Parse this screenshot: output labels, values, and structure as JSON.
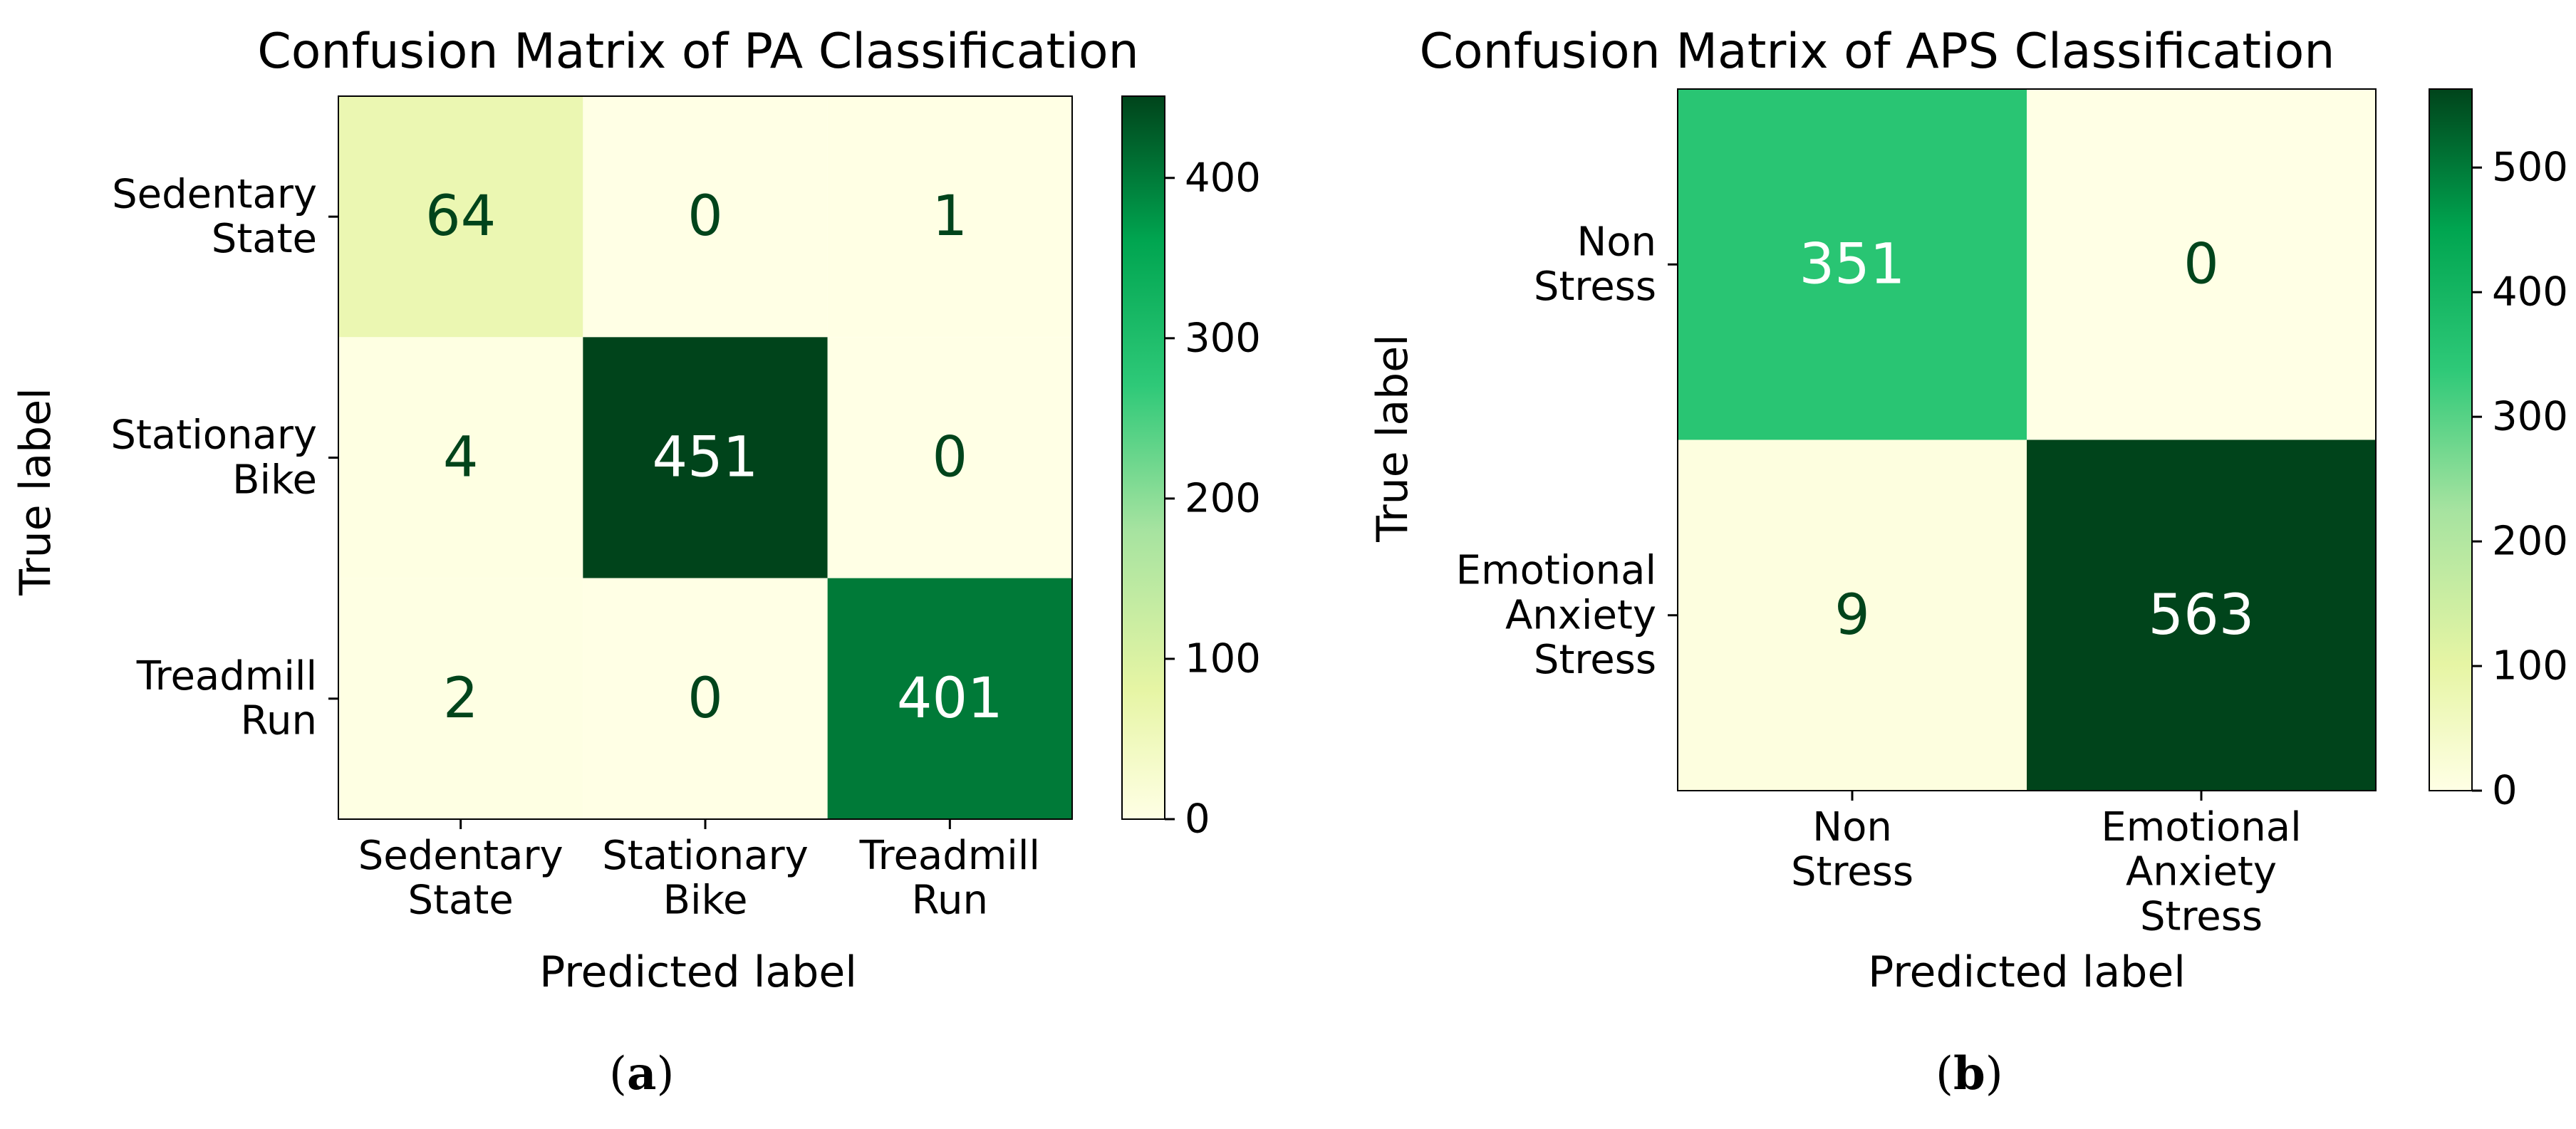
{
  "chart_data": [
    {
      "type": "heatmap",
      "title": "Confusion Matrix of PA Classification",
      "xlabel": "Predicted label",
      "ylabel": "True label",
      "row_labels": [
        [
          "Sedentary",
          "State"
        ],
        [
          "Stationary",
          "Bike"
        ],
        [
          "Treadmill",
          "Run"
        ]
      ],
      "col_labels": [
        [
          "Sedentary",
          "State"
        ],
        [
          "Stationary",
          "Bike"
        ],
        [
          "Treadmill",
          "Run"
        ]
      ],
      "values": [
        [
          64,
          0,
          1
        ],
        [
          4,
          451,
          0
        ],
        [
          2,
          0,
          401
        ]
      ],
      "vmin": 0,
      "vmax": 451,
      "colorbar_ticks": [
        0,
        100,
        200,
        300,
        400
      ],
      "colormap": "YlGn-like (light yellow to dark green)",
      "panel_label": "a"
    },
    {
      "type": "heatmap",
      "title": "Confusion Matrix of APS Classification",
      "xlabel": "Predicted label",
      "ylabel": "True label",
      "row_labels": [
        [
          "Non",
          "Stress"
        ],
        [
          "Emotional",
          "Anxiety",
          "Stress"
        ]
      ],
      "col_labels": [
        [
          "Non",
          "Stress"
        ],
        [
          "Emotional",
          "Anxiety",
          "Stress"
        ]
      ],
      "values": [
        [
          351,
          0
        ],
        [
          9,
          563
        ]
      ],
      "vmin": 0,
      "vmax": 563,
      "colorbar_ticks": [
        0,
        100,
        200,
        300,
        400,
        500
      ],
      "colormap": "YlGn-like (light yellow to dark green)",
      "panel_label": "b"
    }
  ],
  "colors": {
    "low": "#ffffe5",
    "mid_low": "#e6f5a4",
    "mid": "#2ec978",
    "mid_high": "#00a550",
    "high": "#00441b",
    "text_dark": "#00441b",
    "text_light": "#ffffff"
  }
}
